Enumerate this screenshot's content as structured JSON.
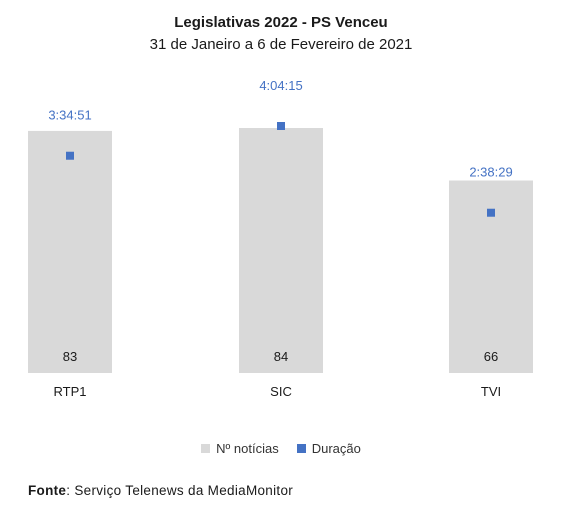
{
  "colors": {
    "bar": "#d9d9d9",
    "marker": "#4472c4",
    "duration_label": "#4472c4",
    "text": "#1a1a1a"
  },
  "source": {
    "label": "Fonte",
    "text": ": Serviço Telenews da MediaMonitor"
  },
  "chart_data": {
    "type": "bar",
    "title": "Legislativas 2022 - PS Venceu",
    "subtitle": "31 de Janeiro a 6 de Fevereiro de 2021",
    "categories": [
      "RTP1",
      "SIC",
      "TVI"
    ],
    "series": [
      {
        "name": "Nº notícias",
        "type": "bar",
        "values": [
          83,
          84,
          66
        ],
        "labels": [
          "83",
          "84",
          "66"
        ]
      },
      {
        "name": "Duração",
        "type": "scatter",
        "values": [
          "3:34:51",
          "4:04:15",
          "2:38:29"
        ],
        "seconds": [
          12891,
          14655,
          9509
        ],
        "labels": [
          "3:34:51",
          "4:04:15",
          "2:38:29"
        ]
      }
    ],
    "legend": "bottom",
    "grid": false
  }
}
